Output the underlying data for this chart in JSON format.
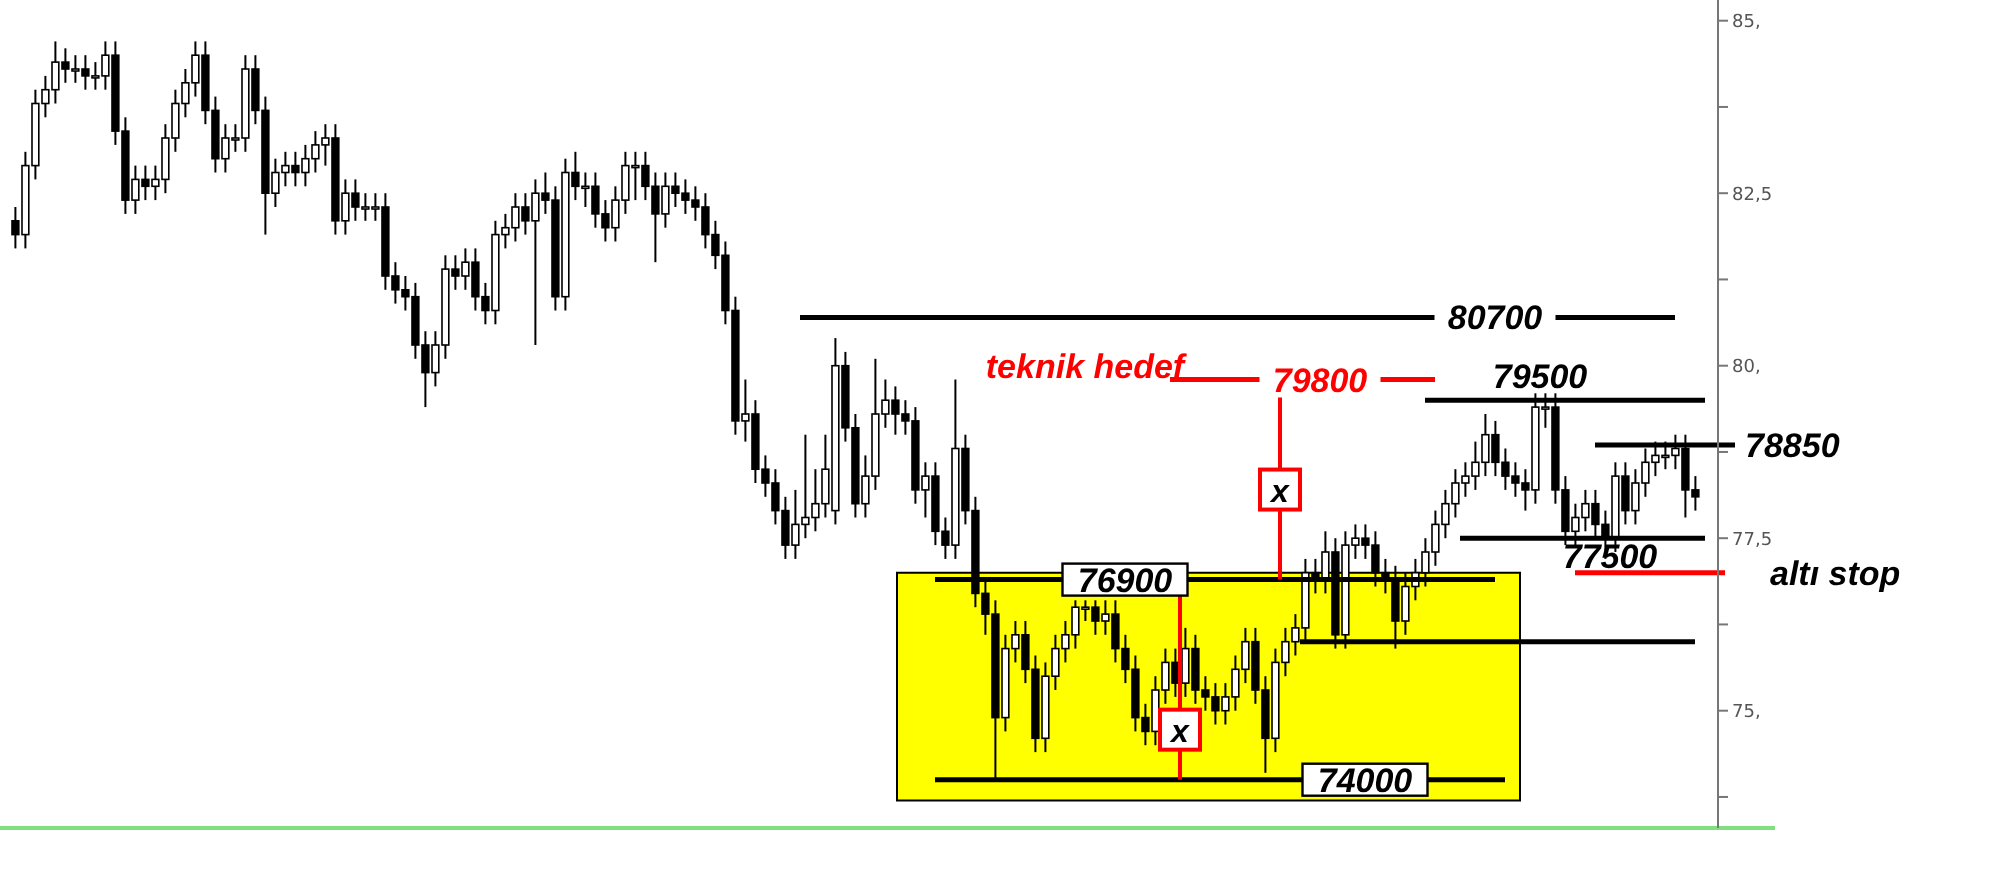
{
  "chart_data": {
    "type": "candlestick",
    "categories": [
      null,
      null,
      null,
      null,
      null,
      null,
      null,
      null,
      null,
      null,
      null,
      null,
      null,
      null,
      null,
      null,
      null,
      null,
      null,
      null,
      null,
      null,
      null,
      null,
      null,
      null,
      null,
      null,
      null,
      null,
      null,
      null,
      null,
      null,
      null,
      null,
      null,
      null,
      null,
      null,
      null,
      null,
      null,
      null,
      null,
      null,
      null,
      null,
      null,
      null,
      null,
      null,
      null,
      null,
      null,
      null,
      null,
      null,
      null,
      null,
      null,
      null,
      null,
      null,
      null,
      null,
      null,
      null,
      null,
      null,
      null,
      null,
      null,
      null,
      null,
      null,
      null,
      null,
      null,
      null,
      null,
      null,
      null,
      null,
      null,
      null,
      null,
      null,
      null,
      null,
      null,
      null,
      null,
      null,
      null,
      null,
      null,
      null,
      null,
      null,
      null,
      null,
      null,
      null,
      null,
      null,
      null,
      null,
      null,
      null,
      null,
      null,
      null,
      null,
      null,
      null,
      null,
      null,
      null,
      null,
      null,
      null,
      null,
      null,
      null,
      null,
      null,
      null,
      null,
      null,
      null,
      null,
      null,
      null,
      null,
      null,
      null,
      null,
      null,
      null,
      null,
      null,
      null,
      null,
      null,
      null,
      null,
      null,
      null,
      null,
      null,
      null,
      null,
      null,
      null,
      null,
      null,
      null,
      null,
      null,
      null,
      null,
      null,
      null,
      null,
      null,
      null,
      null,
      null
    ],
    "color": "#000000",
    "ohlc": [
      [
        82.1,
        82.3,
        81.7,
        81.9
      ],
      [
        81.9,
        83.1,
        81.7,
        82.9
      ],
      [
        82.9,
        84.0,
        82.7,
        83.8
      ],
      [
        83.8,
        84.2,
        83.6,
        84.0
      ],
      [
        84.0,
        84.7,
        83.8,
        84.4
      ],
      [
        84.4,
        84.6,
        84.1,
        84.3
      ],
      [
        84.3,
        84.5,
        84.1,
        84.3
      ],
      [
        84.3,
        84.5,
        84.0,
        84.2
      ],
      [
        84.2,
        84.4,
        84.0,
        84.2
      ],
      [
        84.2,
        84.7,
        84.0,
        84.5
      ],
      [
        84.5,
        84.7,
        83.2,
        83.4
      ],
      [
        83.4,
        83.6,
        82.2,
        82.4
      ],
      [
        82.4,
        82.9,
        82.2,
        82.7
      ],
      [
        82.7,
        82.9,
        82.4,
        82.6
      ],
      [
        82.6,
        82.9,
        82.4,
        82.7
      ],
      [
        82.7,
        83.5,
        82.5,
        83.3
      ],
      [
        83.3,
        84.0,
        83.1,
        83.8
      ],
      [
        83.8,
        84.3,
        83.6,
        84.1
      ],
      [
        84.1,
        84.7,
        83.9,
        84.5
      ],
      [
        84.5,
        84.7,
        83.5,
        83.7
      ],
      [
        83.7,
        83.9,
        82.8,
        83.0
      ],
      [
        83.0,
        83.5,
        82.8,
        83.3
      ],
      [
        83.3,
        83.5,
        83.1,
        83.3
      ],
      [
        83.3,
        84.5,
        83.1,
        84.3
      ],
      [
        84.3,
        84.5,
        83.5,
        83.7
      ],
      [
        83.7,
        83.9,
        81.9,
        82.5
      ],
      [
        82.5,
        83.0,
        82.3,
        82.8
      ],
      [
        82.8,
        83.1,
        82.6,
        82.9
      ],
      [
        82.9,
        83.1,
        82.6,
        82.8
      ],
      [
        82.8,
        83.2,
        82.6,
        83.0
      ],
      [
        83.0,
        83.4,
        82.8,
        83.2
      ],
      [
        83.2,
        83.5,
        82.9,
        83.3
      ],
      [
        83.3,
        83.5,
        81.9,
        82.1
      ],
      [
        82.1,
        82.7,
        81.9,
        82.5
      ],
      [
        82.5,
        82.7,
        82.1,
        82.3
      ],
      [
        82.3,
        82.5,
        82.1,
        82.3
      ],
      [
        82.3,
        82.5,
        82.1,
        82.3
      ],
      [
        82.3,
        82.5,
        81.1,
        81.3
      ],
      [
        81.3,
        81.5,
        80.9,
        81.1
      ],
      [
        81.1,
        81.3,
        80.8,
        81.0
      ],
      [
        81.0,
        81.2,
        80.1,
        80.3
      ],
      [
        80.3,
        80.5,
        79.4,
        79.9
      ],
      [
        79.9,
        80.5,
        79.7,
        80.3
      ],
      [
        80.3,
        81.6,
        80.1,
        81.4
      ],
      [
        81.4,
        81.6,
        81.1,
        81.3
      ],
      [
        81.3,
        81.7,
        81.1,
        81.5
      ],
      [
        81.5,
        81.7,
        80.8,
        81.0
      ],
      [
        81.0,
        81.2,
        80.6,
        80.8
      ],
      [
        80.8,
        82.1,
        80.6,
        81.9
      ],
      [
        81.9,
        82.2,
        81.7,
        82.0
      ],
      [
        82.0,
        82.5,
        81.8,
        82.3
      ],
      [
        82.3,
        82.5,
        81.9,
        82.1
      ],
      [
        82.1,
        82.7,
        80.3,
        82.5
      ],
      [
        82.5,
        82.8,
        82.2,
        82.4
      ],
      [
        82.4,
        82.6,
        80.8,
        81.0
      ],
      [
        81.0,
        83.0,
        80.8,
        82.8
      ],
      [
        82.8,
        83.1,
        82.4,
        82.6
      ],
      [
        82.6,
        82.8,
        82.3,
        82.6
      ],
      [
        82.6,
        82.8,
        82.0,
        82.2
      ],
      [
        82.2,
        82.4,
        81.8,
        82.0
      ],
      [
        82.0,
        82.6,
        81.8,
        82.4
      ],
      [
        82.4,
        83.1,
        82.2,
        82.9
      ],
      [
        82.9,
        83.1,
        82.4,
        82.9
      ],
      [
        82.9,
        83.1,
        82.4,
        82.6
      ],
      [
        82.6,
        82.8,
        81.5,
        82.2
      ],
      [
        82.2,
        82.8,
        82.0,
        82.6
      ],
      [
        82.6,
        82.8,
        82.3,
        82.5
      ],
      [
        82.5,
        82.7,
        82.2,
        82.4
      ],
      [
        82.4,
        82.6,
        82.1,
        82.3
      ],
      [
        82.3,
        82.5,
        81.7,
        81.9
      ],
      [
        81.9,
        82.1,
        81.4,
        81.6
      ],
      [
        81.6,
        81.8,
        80.6,
        80.8
      ],
      [
        80.8,
        81.0,
        79.0,
        79.2
      ],
      [
        79.2,
        79.8,
        78.9,
        79.3
      ],
      [
        79.3,
        79.5,
        78.3,
        78.5
      ],
      [
        78.5,
        78.7,
        78.1,
        78.3
      ],
      [
        78.3,
        78.5,
        77.7,
        77.9
      ],
      [
        77.9,
        78.1,
        77.2,
        77.4
      ],
      [
        77.4,
        78.2,
        77.2,
        77.7
      ],
      [
        77.7,
        79.0,
        77.5,
        77.8
      ],
      [
        77.8,
        78.5,
        77.6,
        78.0
      ],
      [
        78.0,
        79.0,
        77.8,
        78.5
      ],
      [
        77.9,
        80.4,
        77.7,
        80.0
      ],
      [
        80.0,
        80.2,
        78.9,
        79.1
      ],
      [
        79.1,
        79.3,
        77.8,
        78.0
      ],
      [
        78.0,
        78.7,
        77.8,
        78.4
      ],
      [
        78.4,
        80.1,
        78.2,
        79.3
      ],
      [
        79.3,
        79.8,
        79.1,
        79.5
      ],
      [
        79.5,
        79.7,
        79.0,
        79.3
      ],
      [
        79.3,
        79.5,
        79.0,
        79.2
      ],
      [
        79.2,
        79.4,
        78.0,
        78.2
      ],
      [
        78.2,
        78.6,
        77.8,
        78.4
      ],
      [
        78.4,
        78.6,
        77.4,
        77.6
      ],
      [
        77.6,
        77.8,
        77.2,
        77.4
      ],
      [
        77.4,
        79.8,
        77.2,
        78.8
      ],
      [
        78.8,
        79.0,
        77.7,
        77.9
      ],
      [
        77.9,
        78.1,
        76.5,
        76.7
      ],
      [
        76.7,
        76.9,
        76.1,
        76.4
      ],
      [
        76.4,
        76.6,
        74.0,
        74.9
      ],
      [
        74.9,
        76.1,
        74.7,
        75.9
      ],
      [
        75.9,
        76.3,
        75.7,
        76.1
      ],
      [
        76.1,
        76.3,
        75.4,
        75.6
      ],
      [
        75.6,
        75.8,
        74.4,
        74.6
      ],
      [
        74.6,
        75.7,
        74.4,
        75.5
      ],
      [
        75.5,
        76.1,
        75.3,
        75.9
      ],
      [
        75.9,
        76.3,
        75.7,
        76.1
      ],
      [
        76.1,
        76.6,
        75.9,
        76.5
      ],
      [
        76.5,
        76.6,
        76.3,
        76.5
      ],
      [
        76.5,
        76.6,
        76.1,
        76.3
      ],
      [
        76.3,
        76.6,
        76.1,
        76.4
      ],
      [
        76.4,
        76.6,
        75.7,
        75.9
      ],
      [
        75.9,
        76.1,
        75.4,
        75.6
      ],
      [
        75.6,
        75.8,
        74.7,
        74.9
      ],
      [
        74.9,
        75.1,
        74.5,
        74.7
      ],
      [
        74.7,
        75.5,
        74.5,
        75.3
      ],
      [
        75.3,
        75.9,
        75.1,
        75.7
      ],
      [
        75.7,
        75.9,
        75.2,
        75.4
      ],
      [
        75.4,
        76.2,
        75.2,
        75.9
      ],
      [
        75.9,
        76.1,
        75.1,
        75.3
      ],
      [
        75.3,
        75.5,
        75.0,
        75.2
      ],
      [
        75.2,
        75.4,
        74.8,
        75.0
      ],
      [
        75.0,
        75.4,
        74.8,
        75.2
      ],
      [
        75.2,
        75.8,
        75.0,
        75.6
      ],
      [
        75.6,
        76.2,
        75.4,
        76.0
      ],
      [
        76.0,
        76.2,
        75.1,
        75.3
      ],
      [
        75.3,
        75.5,
        74.1,
        74.6
      ],
      [
        74.6,
        75.9,
        74.4,
        75.7
      ],
      [
        75.7,
        76.2,
        75.5,
        76.0
      ],
      [
        76.0,
        76.4,
        75.8,
        76.2
      ],
      [
        76.2,
        77.2,
        76.0,
        77.0
      ],
      [
        77.0,
        77.2,
        76.7,
        76.9
      ],
      [
        76.9,
        77.6,
        76.7,
        77.3
      ],
      [
        77.3,
        77.5,
        75.9,
        76.1
      ],
      [
        76.1,
        77.6,
        75.9,
        77.4
      ],
      [
        77.4,
        77.7,
        77.2,
        77.5
      ],
      [
        77.5,
        77.7,
        77.2,
        77.4
      ],
      [
        77.4,
        77.6,
        76.8,
        77.0
      ],
      [
        77.0,
        77.2,
        76.7,
        76.9
      ],
      [
        76.9,
        77.1,
        75.9,
        76.3
      ],
      [
        76.3,
        77.0,
        76.1,
        76.8
      ],
      [
        76.8,
        77.2,
        76.6,
        77.0
      ],
      [
        77.0,
        77.5,
        76.8,
        77.3
      ],
      [
        77.3,
        77.9,
        77.1,
        77.7
      ],
      [
        77.7,
        78.2,
        77.5,
        78.0
      ],
      [
        78.0,
        78.5,
        77.8,
        78.3
      ],
      [
        78.3,
        78.6,
        78.1,
        78.4
      ],
      [
        78.4,
        78.9,
        78.2,
        78.6
      ],
      [
        78.6,
        79.3,
        78.4,
        79.0
      ],
      [
        79.0,
        79.2,
        78.4,
        78.6
      ],
      [
        78.6,
        78.8,
        78.2,
        78.4
      ],
      [
        78.4,
        78.6,
        78.1,
        78.3
      ],
      [
        78.3,
        78.5,
        77.9,
        78.2
      ],
      [
        78.2,
        79.6,
        78.0,
        79.4
      ],
      [
        79.4,
        79.6,
        79.1,
        79.4
      ],
      [
        79.4,
        79.6,
        78.0,
        78.2
      ],
      [
        78.2,
        78.4,
        77.4,
        77.6
      ],
      [
        77.6,
        78.0,
        77.4,
        77.8
      ],
      [
        77.8,
        78.2,
        77.6,
        78.0
      ],
      [
        78.0,
        78.2,
        77.5,
        77.7
      ],
      [
        77.7,
        77.9,
        77.2,
        77.5
      ],
      [
        77.5,
        78.6,
        77.3,
        78.4
      ],
      [
        78.4,
        78.6,
        77.7,
        77.9
      ],
      [
        77.9,
        78.5,
        77.7,
        78.3
      ],
      [
        78.3,
        78.8,
        78.1,
        78.6
      ],
      [
        78.6,
        78.9,
        78.4,
        78.7
      ],
      [
        78.7,
        78.9,
        78.5,
        78.7
      ],
      [
        78.7,
        79.0,
        78.5,
        78.8
      ],
      [
        78.8,
        79.0,
        77.8,
        78.2
      ],
      [
        78.2,
        78.4,
        77.9,
        78.1
      ]
    ],
    "ylim": [
      73.3,
      85.3
    ],
    "yticks": [
      {
        "value": 85,
        "label": "85,"
      },
      {
        "value": 83.75,
        "label": null
      },
      {
        "value": 82.5,
        "label": "82,5"
      },
      {
        "value": 81.25,
        "label": null
      },
      {
        "value": 80,
        "label": "80,"
      },
      {
        "value": 78.75,
        "label": null
      },
      {
        "value": 77.5,
        "label": "77,5"
      },
      {
        "value": 76.25,
        "label": null
      },
      {
        "value": 75,
        "label": "75,"
      },
      {
        "value": 73.75,
        "label": null
      }
    ],
    "tick_labels": "y",
    "ref_lines": [
      {
        "axis": "y",
        "value": 80.7,
        "label": "80700",
        "color": "#000000"
      },
      {
        "axis": "y",
        "value": 79.8,
        "label": "79800",
        "color": "#ff0000"
      },
      {
        "axis": "y",
        "value": 79.5,
        "label": "79500",
        "color": "#000000"
      },
      {
        "axis": "y",
        "value": 78.85,
        "label": "78850",
        "color": "#000000"
      },
      {
        "axis": "y",
        "value": 77.5,
        "label": "77500",
        "color": "#000000"
      },
      {
        "axis": "y",
        "value": 77.0,
        "label": "altı stop",
        "color": "#ff0000"
      },
      {
        "axis": "y",
        "value": 76.9,
        "label": "76900",
        "color": "#000000"
      },
      {
        "axis": "y",
        "value": 76.0,
        "color": "#000000"
      },
      {
        "axis": "y",
        "value": 74.0,
        "label": "74000",
        "color": "#000000"
      },
      {
        "axis": "y",
        "value": 73.3,
        "color": "#80e080"
      }
    ],
    "bands": [
      {
        "axis": "y",
        "from": 73.7,
        "to": 77.0,
        "color": "#ffff00"
      }
    ],
    "annotations": [
      "teknik hedef",
      "x",
      "x"
    ]
  }
}
